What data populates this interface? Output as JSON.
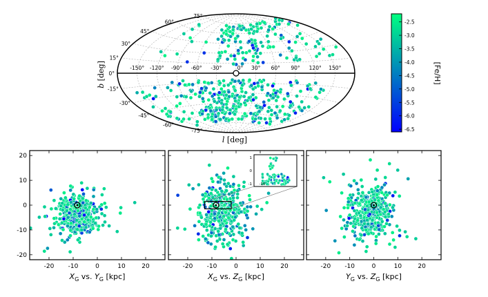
{
  "colorbar": {
    "label": "[Fe/H]",
    "ticks": [
      "-2.5",
      "-3.0",
      "-3.5",
      "-4.0",
      "-4.5",
      "-5.0",
      "-5.5",
      "-6.0",
      "-6.5"
    ],
    "vmin": -6.6,
    "vmax": -2.2,
    "color_high": "#00ff80",
    "color_low": "#0000ff"
  },
  "chart_data": [
    {
      "type": "scatter",
      "title": "",
      "xlabel": "l [deg]",
      "ylabel": "b [deg]",
      "projection": "aitoff",
      "lon_ticks": [
        "-150°",
        "-120°",
        "-90°",
        "-60°",
        "-30°",
        "0°",
        "30°",
        "60°",
        "90°",
        "120°",
        "150°"
      ],
      "lat_ticks": [
        "75°",
        "60°",
        "45°",
        "30°",
        "15°",
        "0°",
        "-15°",
        "-30°",
        "-45°",
        "-60°",
        "-75°"
      ],
      "color": "[Fe/H]"
    },
    {
      "type": "scatter",
      "xlabel": "X_G vs. Y_G [kpc]",
      "xlim": [
        -28,
        28
      ],
      "ylim": [
        -22,
        22
      ],
      "xticks": [
        "-20",
        "-10",
        "0",
        "10",
        "20"
      ],
      "yticks": [
        "20",
        "10",
        "0",
        "-10",
        "-20"
      ],
      "sun": [
        -8.3,
        0
      ]
    },
    {
      "type": "scatter",
      "xlabel": "X_G vs. Z_G [kpc]",
      "xlim": [
        -28,
        28
      ],
      "ylim": [
        -22,
        22
      ],
      "xticks": [
        "-20",
        "-10",
        "0",
        "10",
        "20"
      ],
      "sun": [
        -8.3,
        0
      ],
      "inset": {
        "yticks": [
          "1",
          "0",
          "-1"
        ],
        "xticks": [
          "-10"
        ]
      }
    },
    {
      "type": "scatter",
      "xlabel": "Y_G vs. Z_G [kpc]",
      "xlim": [
        -28,
        28
      ],
      "ylim": [
        -22,
        22
      ],
      "xticks": [
        "-20",
        "-10",
        "0",
        "10",
        "20"
      ],
      "sun": [
        0,
        0
      ]
    }
  ]
}
